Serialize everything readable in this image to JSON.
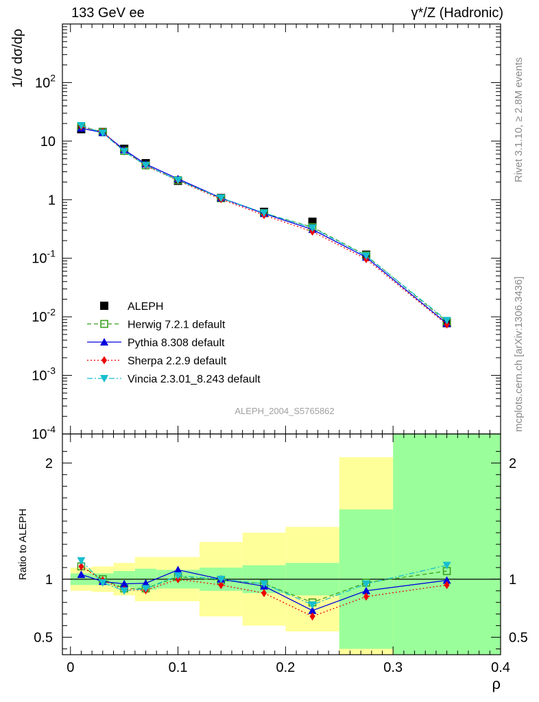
{
  "header": {
    "left": "133 GeV ee",
    "right": "γ*/Z (Hadronic)"
  },
  "side_labels": {
    "top": "Rivet 3.1.10, ≥ 2.8M events",
    "bottom": "mcplots.cern.ch [arXiv:1306.3436]"
  },
  "watermark": "ALEPH_2004_S5765862",
  "chart_data": [
    {
      "type": "scatter",
      "panel": "main",
      "ylabel": "1/σ dσ/dρ",
      "yscale": "log",
      "ylim": [
        0.0001,
        1000
      ],
      "xlim": [
        -0.0075,
        0.4
      ],
      "ytick_labels": [
        "10^-4",
        "10^-3",
        "10^-2",
        "10^-1",
        "1",
        "10",
        "10^2"
      ],
      "legend_position": "lower-left",
      "series": [
        {
          "name": "ALEPH",
          "color": "#000000",
          "marker": "square",
          "x": [
            0.01,
            0.03,
            0.05,
            0.07,
            0.1,
            0.14,
            0.18,
            0.225,
            0.275,
            0.35
          ],
          "y": [
            16.0,
            14.3,
            7.4,
            4.2,
            2.1,
            1.07,
            0.62,
            0.42,
            0.115,
            0.0078
          ],
          "y_err_rel": [
            0.1,
            0.1,
            0.14,
            0.19,
            0.19,
            0.32,
            0.4,
            0.45,
            0.6,
            1.0
          ]
        },
        {
          "name": "Herwig 7.2.1 default",
          "color": "#3a9e1f",
          "marker": "open-square",
          "line": "dashed",
          "x": [
            0.01,
            0.03,
            0.05,
            0.07,
            0.1,
            0.14,
            0.18,
            0.225,
            0.275,
            0.35
          ],
          "y": [
            17.8,
            14.3,
            6.8,
            3.85,
            2.15,
            1.06,
            0.59,
            0.34,
            0.112,
            0.0083
          ]
        },
        {
          "name": "Pythia 8.308 default",
          "color": "#0000dd",
          "marker": "triangle-up",
          "line": "solid",
          "x": [
            0.01,
            0.03,
            0.05,
            0.07,
            0.1,
            0.14,
            0.18,
            0.225,
            0.275,
            0.35
          ],
          "y": [
            16.6,
            14.0,
            7.1,
            4.05,
            2.27,
            1.07,
            0.58,
            0.31,
            0.104,
            0.0077
          ]
        },
        {
          "name": "Sherpa 2.2.9 default",
          "color": "#ee0000",
          "marker": "diamond",
          "line": "dotted",
          "x": [
            0.01,
            0.03,
            0.05,
            0.07,
            0.1,
            0.14,
            0.18,
            0.225,
            0.275,
            0.35
          ],
          "y": [
            17.8,
            14.3,
            6.7,
            3.8,
            2.12,
            1.02,
            0.545,
            0.285,
            0.097,
            0.0074
          ]
        },
        {
          "name": "Vincia 2.3.01_8.243 default",
          "color": "#17becf",
          "marker": "triangle-down",
          "line": "dashdot",
          "x": [
            0.01,
            0.03,
            0.05,
            0.07,
            0.1,
            0.14,
            0.18,
            0.225,
            0.275,
            0.35
          ],
          "y": [
            18.5,
            13.8,
            6.65,
            3.85,
            2.15,
            1.07,
            0.595,
            0.33,
            0.11,
            0.0087
          ]
        }
      ]
    },
    {
      "type": "line",
      "panel": "ratio",
      "ylabel": "Ratio to ALEPH",
      "xlabel": "ρ",
      "ylim": [
        0.35,
        2.25
      ],
      "xlim": [
        -0.0075,
        0.4
      ],
      "x_ticks": [
        0,
        0.1,
        0.2,
        0.3,
        0.4
      ],
      "x_tick_labels": [
        "0",
        "0.1",
        "0.2",
        "0.3",
        "0.4"
      ],
      "y_ticks": [
        0.5,
        1,
        2
      ],
      "y_tick_labels": [
        "0.5",
        "1",
        "2"
      ],
      "reference_line": 1,
      "bins": [
        {
          "lo": 0.0,
          "hi": 0.02,
          "stat_lo": 0.95,
          "stat_hi": 1.05,
          "tot_lo": 0.9,
          "tot_hi": 1.1
        },
        {
          "lo": 0.02,
          "hi": 0.04,
          "stat_lo": 0.95,
          "stat_hi": 1.05,
          "tot_lo": 0.89,
          "tot_hi": 1.11
        },
        {
          "lo": 0.04,
          "hi": 0.06,
          "stat_lo": 0.93,
          "stat_hi": 1.07,
          "tot_lo": 0.86,
          "tot_hi": 1.14
        },
        {
          "lo": 0.06,
          "hi": 0.08,
          "stat_lo": 0.91,
          "stat_hi": 1.09,
          "tot_lo": 0.81,
          "tot_hi": 1.19
        },
        {
          "lo": 0.08,
          "hi": 0.12,
          "stat_lo": 0.92,
          "stat_hi": 1.08,
          "tot_lo": 0.81,
          "tot_hi": 1.19
        },
        {
          "lo": 0.12,
          "hi": 0.16,
          "stat_lo": 0.9,
          "stat_hi": 1.1,
          "tot_lo": 0.68,
          "tot_hi": 1.32
        },
        {
          "lo": 0.16,
          "hi": 0.2,
          "stat_lo": 0.88,
          "stat_hi": 1.12,
          "tot_lo": 0.6,
          "tot_hi": 1.4
        },
        {
          "lo": 0.2,
          "hi": 0.25,
          "stat_lo": 0.86,
          "stat_hi": 1.14,
          "tot_lo": 0.55,
          "tot_hi": 1.45
        },
        {
          "lo": 0.25,
          "hi": 0.3,
          "stat_lo": 0.4,
          "stat_hi": 1.6,
          "tot_lo": 0.35,
          "tot_hi": 2.05
        },
        {
          "lo": 0.3,
          "hi": 0.4,
          "stat_lo": 0.35,
          "stat_hi": 2.25,
          "tot_lo": 0.35,
          "tot_hi": 2.25
        }
      ],
      "band_colors": {
        "stat": "#9aff9a",
        "total": "#ffff9a"
      },
      "series": [
        {
          "name": "Herwig 7.2.1 default",
          "color": "#3a9e1f",
          "x": [
            0.01,
            0.03,
            0.05,
            0.07,
            0.1,
            0.14,
            0.18,
            0.225,
            0.275,
            0.35
          ],
          "y": [
            1.11,
            1.0,
            0.92,
            0.92,
            1.02,
            0.99,
            0.96,
            0.8,
            0.97,
            1.07
          ]
        },
        {
          "name": "Pythia 8.308 default",
          "color": "#0000dd",
          "x": [
            0.01,
            0.03,
            0.05,
            0.07,
            0.1,
            0.14,
            0.18,
            0.225,
            0.275,
            0.35
          ],
          "y": [
            1.04,
            0.98,
            0.96,
            0.965,
            1.08,
            1.0,
            0.94,
            0.73,
            0.9,
            0.99
          ]
        },
        {
          "name": "Sherpa 2.2.9 default",
          "color": "#ee0000",
          "x": [
            0.01,
            0.03,
            0.05,
            0.07,
            0.1,
            0.14,
            0.18,
            0.225,
            0.275,
            0.35
          ],
          "y": [
            1.11,
            0.99,
            0.91,
            0.905,
            1.0,
            0.95,
            0.88,
            0.68,
            0.85,
            0.95
          ]
        },
        {
          "name": "Vincia 2.3.01_8.243 default",
          "color": "#17becf",
          "x": [
            0.01,
            0.03,
            0.05,
            0.07,
            0.1,
            0.14,
            0.18,
            0.225,
            0.275,
            0.35
          ],
          "y": [
            1.16,
            0.97,
            0.9,
            0.92,
            1.03,
            1.0,
            0.96,
            0.78,
            0.96,
            1.12
          ]
        }
      ]
    }
  ]
}
